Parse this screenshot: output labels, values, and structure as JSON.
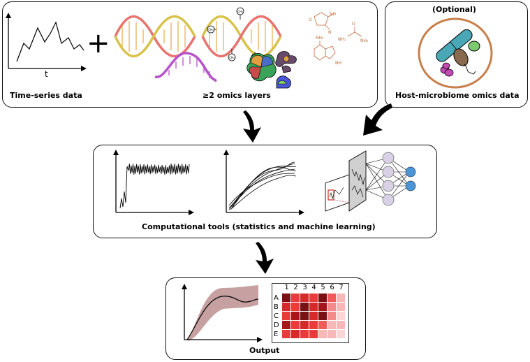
{
  "panels": {
    "inputs": {
      "timeseries_label": "Time-series data",
      "timeseries_axis_label": "t",
      "omics_label": "≥2 omics layers",
      "plus_symbol": "+",
      "methyl_tag": "CH₃",
      "nh2_tag": "NH₂",
      "nh_tag": "NH",
      "o_tag": "O",
      "n_tag": "N"
    },
    "microbiome": {
      "optional_label": "(Optional)",
      "label": "Host-microbiome omics data"
    },
    "tools": {
      "label": "Computational tools (statistics and machine learning)"
    },
    "output": {
      "label": "Output",
      "heatmap_columns": [
        "1",
        "2",
        "3",
        "4",
        "5",
        "6",
        "7"
      ],
      "heatmap_rows": [
        "A",
        "B",
        "C",
        "D",
        "E"
      ]
    }
  },
  "colors": {
    "dna_strand_a": "#e8736f",
    "dna_strand_b": "#d8c24a",
    "rna": "#b653c9",
    "molecule": "#c26a3c",
    "microbe_circle": "#c87f4b",
    "bacterium_teal": "#4aa7b5",
    "bacterium_brown": "#8a6a4e",
    "blob_green": "#7cc96f",
    "blob_magenta": "#c24ab3",
    "neuron_lavender": "#d9d2e6",
    "neuron_output": "#4a95d6",
    "ribbon": "#b98a8a",
    "arrow": "#000000"
  },
  "icons": [
    "dna-helix-icon",
    "methylated-dna-icon",
    "rna-strand-icon",
    "protein-complex-icon",
    "metabolite-structure-icon",
    "microbiome-icon",
    "neural-network-icon",
    "line-plot-icon",
    "heatmap-icon",
    "down-arrow-icon"
  ]
}
